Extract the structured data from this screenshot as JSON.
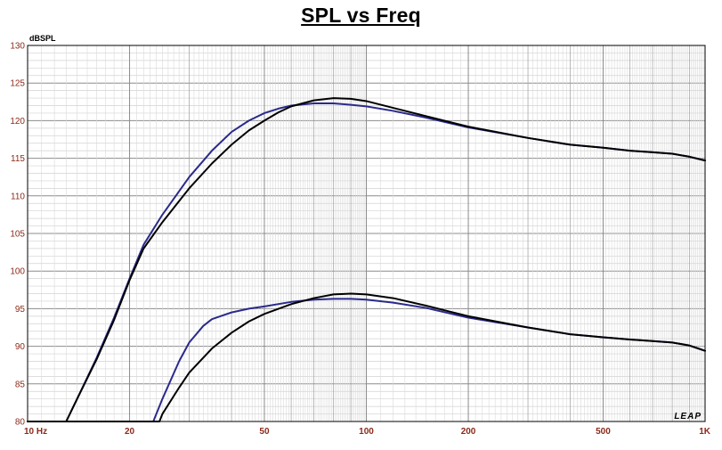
{
  "chart_data": {
    "type": "line",
    "title": "SPL vs Freq",
    "ylabel": "dBSPL",
    "xlabel": "",
    "x_scale": "log",
    "xlim": [
      10,
      1000
    ],
    "ylim": [
      80,
      130
    ],
    "grid": true,
    "watermark": "LEAP",
    "y_ticks": [
      "80",
      "85",
      "90",
      "95",
      "100",
      "105",
      "110",
      "115",
      "120",
      "125",
      "130"
    ],
    "x_ticks": [
      {
        "value": 10,
        "label": "10  Hz"
      },
      {
        "value": 20,
        "label": "20"
      },
      {
        "value": 50,
        "label": "50"
      },
      {
        "value": 100,
        "label": "100"
      },
      {
        "value": 200,
        "label": "200"
      },
      {
        "value": 500,
        "label": "500"
      },
      {
        "value": 1000,
        "label": "1K"
      }
    ],
    "colors": {
      "black_series": "#000000",
      "blue_series": "#2a2a8c",
      "tick_label": "#8b2a1a"
    },
    "series": [
      {
        "color": "black",
        "points": [
          [
            10,
            80
          ],
          [
            13,
            80
          ],
          [
            14,
            83
          ],
          [
            16,
            88.3
          ],
          [
            18,
            93.5
          ],
          [
            20,
            98.8
          ],
          [
            22,
            103
          ],
          [
            25,
            106.5
          ],
          [
            30,
            111
          ],
          [
            35,
            114.3
          ],
          [
            40,
            116.8
          ],
          [
            45,
            118.7
          ],
          [
            50,
            120
          ],
          [
            55,
            121.1
          ],
          [
            60,
            121.9
          ],
          [
            70,
            122.7
          ],
          [
            80,
            123
          ],
          [
            90,
            122.9
          ],
          [
            100,
            122.6
          ],
          [
            120,
            121.7
          ],
          [
            150,
            120.6
          ],
          [
            200,
            119.2
          ],
          [
            300,
            117.7
          ],
          [
            400,
            116.8
          ],
          [
            500,
            116.4
          ],
          [
            600,
            116
          ],
          [
            700,
            115.8
          ],
          [
            800,
            115.6
          ],
          [
            900,
            115.2
          ],
          [
            1000,
            114.7
          ]
        ]
      },
      {
        "color": "blue",
        "points": [
          [
            10,
            80
          ],
          [
            13,
            80
          ],
          [
            14,
            83
          ],
          [
            16,
            88.5
          ],
          [
            18,
            93.8
          ],
          [
            20,
            99
          ],
          [
            22,
            103.5
          ],
          [
            25,
            107.5
          ],
          [
            30,
            112.5
          ],
          [
            35,
            116
          ],
          [
            40,
            118.5
          ],
          [
            45,
            120
          ],
          [
            50,
            121
          ],
          [
            55,
            121.6
          ],
          [
            60,
            122
          ],
          [
            70,
            122.3
          ],
          [
            80,
            122.3
          ],
          [
            90,
            122.1
          ],
          [
            100,
            121.9
          ],
          [
            120,
            121.3
          ],
          [
            150,
            120.4
          ],
          [
            200,
            119.1
          ],
          [
            300,
            117.7
          ],
          [
            400,
            116.8
          ],
          [
            500,
            116.4
          ],
          [
            600,
            116
          ],
          [
            700,
            115.8
          ],
          [
            800,
            115.6
          ],
          [
            900,
            115.2
          ],
          [
            1000,
            114.7
          ]
        ]
      },
      {
        "color": "black",
        "points": [
          [
            10,
            80
          ],
          [
            24.5,
            80
          ],
          [
            25,
            81
          ],
          [
            28,
            84.5
          ],
          [
            30,
            86.5
          ],
          [
            35,
            89.7
          ],
          [
            40,
            91.8
          ],
          [
            45,
            93.3
          ],
          [
            50,
            94.3
          ],
          [
            60,
            95.6
          ],
          [
            70,
            96.4
          ],
          [
            80,
            96.9
          ],
          [
            90,
            97
          ],
          [
            100,
            96.9
          ],
          [
            120,
            96.4
          ],
          [
            150,
            95.4
          ],
          [
            200,
            94
          ],
          [
            300,
            92.5
          ],
          [
            400,
            91.6
          ],
          [
            500,
            91.2
          ],
          [
            600,
            90.9
          ],
          [
            700,
            90.7
          ],
          [
            800,
            90.5
          ],
          [
            900,
            90.1
          ],
          [
            1000,
            89.4
          ]
        ]
      },
      {
        "color": "blue",
        "points": [
          [
            10,
            80
          ],
          [
            23.5,
            80
          ],
          [
            25,
            83
          ],
          [
            28,
            88
          ],
          [
            30,
            90.5
          ],
          [
            33,
            92.7
          ],
          [
            35,
            93.6
          ],
          [
            40,
            94.5
          ],
          [
            45,
            95
          ],
          [
            50,
            95.3
          ],
          [
            60,
            95.9
          ],
          [
            70,
            96.2
          ],
          [
            80,
            96.3
          ],
          [
            90,
            96.3
          ],
          [
            100,
            96.2
          ],
          [
            120,
            95.8
          ],
          [
            150,
            95.1
          ],
          [
            200,
            93.8
          ],
          [
            300,
            92.5
          ],
          [
            400,
            91.6
          ],
          [
            500,
            91.2
          ],
          [
            600,
            90.9
          ],
          [
            700,
            90.7
          ],
          [
            800,
            90.5
          ],
          [
            900,
            90.1
          ],
          [
            1000,
            89.4
          ]
        ]
      }
    ]
  }
}
